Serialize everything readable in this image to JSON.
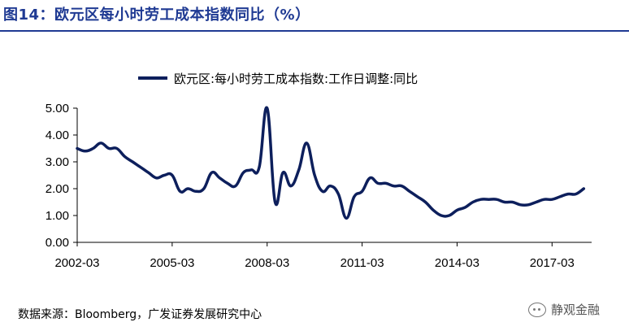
{
  "title": "图14：欧元区每小时劳工成本指数同比（%）",
  "source": "数据来源：Bloomberg，广发证券发展研究中心",
  "watermark": {
    "text": "静观金融",
    "icon": "wechat-icon"
  },
  "colors": {
    "title": "#1f3a93",
    "series": "#0d1f5c"
  },
  "chart_data": {
    "type": "line",
    "title": "",
    "legend": "top",
    "grid": false,
    "ylim": [
      0,
      5
    ],
    "y_ticks": [
      "0.00",
      "1.00",
      "2.00",
      "3.00",
      "4.00",
      "5.00"
    ],
    "x_ticks": [
      "2002-03",
      "2005-03",
      "2008-03",
      "2011-03",
      "2014-03",
      "2017-03"
    ],
    "xlim": [
      2002.0,
      2018.25
    ],
    "series": [
      {
        "name": "欧元区:每小时劳工成本指数:工作日调整:同比",
        "x": [
          2002.0,
          2002.25,
          2002.5,
          2002.75,
          2003.0,
          2003.25,
          2003.5,
          2003.75,
          2004.0,
          2004.25,
          2004.5,
          2004.75,
          2005.0,
          2005.25,
          2005.5,
          2005.75,
          2006.0,
          2006.25,
          2006.5,
          2006.75,
          2007.0,
          2007.25,
          2007.5,
          2007.75,
          2008.0,
          2008.25,
          2008.5,
          2008.75,
          2009.0,
          2009.25,
          2009.5,
          2009.75,
          2010.0,
          2010.25,
          2010.5,
          2010.75,
          2011.0,
          2011.25,
          2011.5,
          2011.75,
          2012.0,
          2012.25,
          2012.5,
          2012.75,
          2013.0,
          2013.25,
          2013.5,
          2013.75,
          2014.0,
          2014.25,
          2014.5,
          2014.75,
          2015.0,
          2015.25,
          2015.5,
          2015.75,
          2016.0,
          2016.25,
          2016.5,
          2016.75,
          2017.0,
          2017.25,
          2017.5,
          2017.75,
          2018.0
        ],
        "values": [
          3.5,
          3.4,
          3.5,
          3.7,
          3.5,
          3.5,
          3.2,
          3.0,
          2.8,
          2.6,
          2.4,
          2.5,
          2.5,
          1.9,
          2.0,
          1.9,
          2.0,
          2.6,
          2.4,
          2.2,
          2.1,
          2.6,
          2.7,
          2.8,
          5.0,
          1.5,
          2.6,
          2.1,
          2.7,
          3.7,
          2.5,
          1.9,
          2.1,
          1.8,
          0.9,
          1.7,
          1.9,
          2.4,
          2.2,
          2.2,
          2.1,
          2.1,
          1.9,
          1.7,
          1.5,
          1.2,
          1.0,
          1.0,
          1.2,
          1.3,
          1.5,
          1.6,
          1.6,
          1.6,
          1.5,
          1.5,
          1.4,
          1.4,
          1.5,
          1.6,
          1.6,
          1.7,
          1.8,
          1.8,
          2.0
        ]
      }
    ]
  }
}
